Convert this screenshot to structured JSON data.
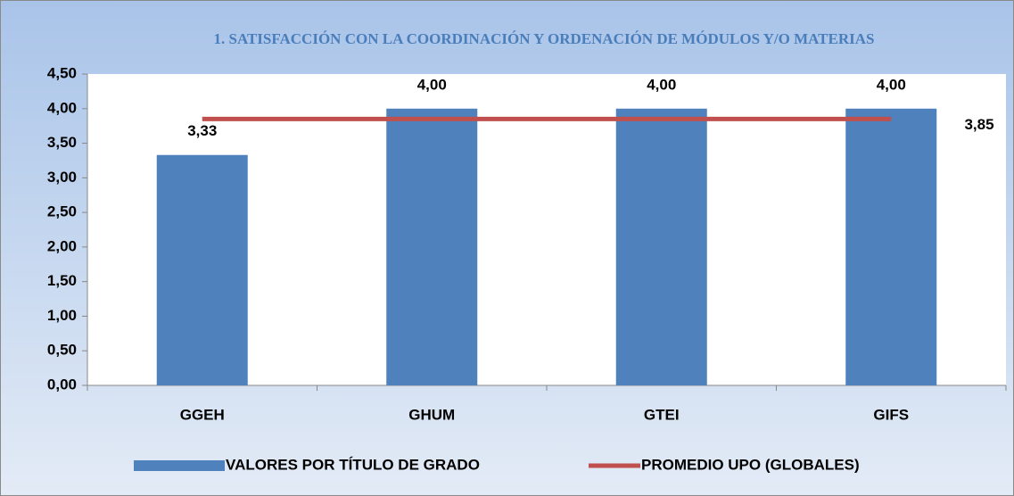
{
  "chart_data": {
    "type": "bar",
    "title": "1. SATISFACCIÓN CON LA COORDINACIÓN Y ORDENACIÓN DE MÓDULOS Y/O MATERIAS",
    "categories": [
      "GGEH",
      "GHUM",
      "GTEI",
      "GIFS"
    ],
    "series": [
      {
        "name": "VALORES POR TÍTULO DE GRADO",
        "type": "bar",
        "color": "#4f81bd",
        "values": [
          3.33,
          4.0,
          4.0,
          4.0
        ],
        "value_labels": [
          "3,33",
          "4,00",
          "4,00",
          "4,00"
        ]
      },
      {
        "name": "PROMEDIO UPO (GLOBALES)",
        "type": "line",
        "color": "#c0504d",
        "values": [
          3.85,
          3.85,
          3.85,
          3.85
        ],
        "value_labels": [
          null,
          null,
          null,
          "3,85"
        ]
      }
    ],
    "ylim": [
      0,
      4.5
    ],
    "yticks": [
      {
        "value": 0,
        "label": "0,00"
      },
      {
        "value": 0.5,
        "label": "0,50"
      },
      {
        "value": 1,
        "label": "1,00"
      },
      {
        "value": 1.5,
        "label": "1,50"
      },
      {
        "value": 2,
        "label": "2,00"
      },
      {
        "value": 2.5,
        "label": "2,50"
      },
      {
        "value": 3,
        "label": "3,00"
      },
      {
        "value": 3.5,
        "label": "3,50"
      },
      {
        "value": 4,
        "label": "4,00"
      },
      {
        "value": 4.5,
        "label": "4,50"
      }
    ],
    "grid": false,
    "legend": "bottom"
  }
}
